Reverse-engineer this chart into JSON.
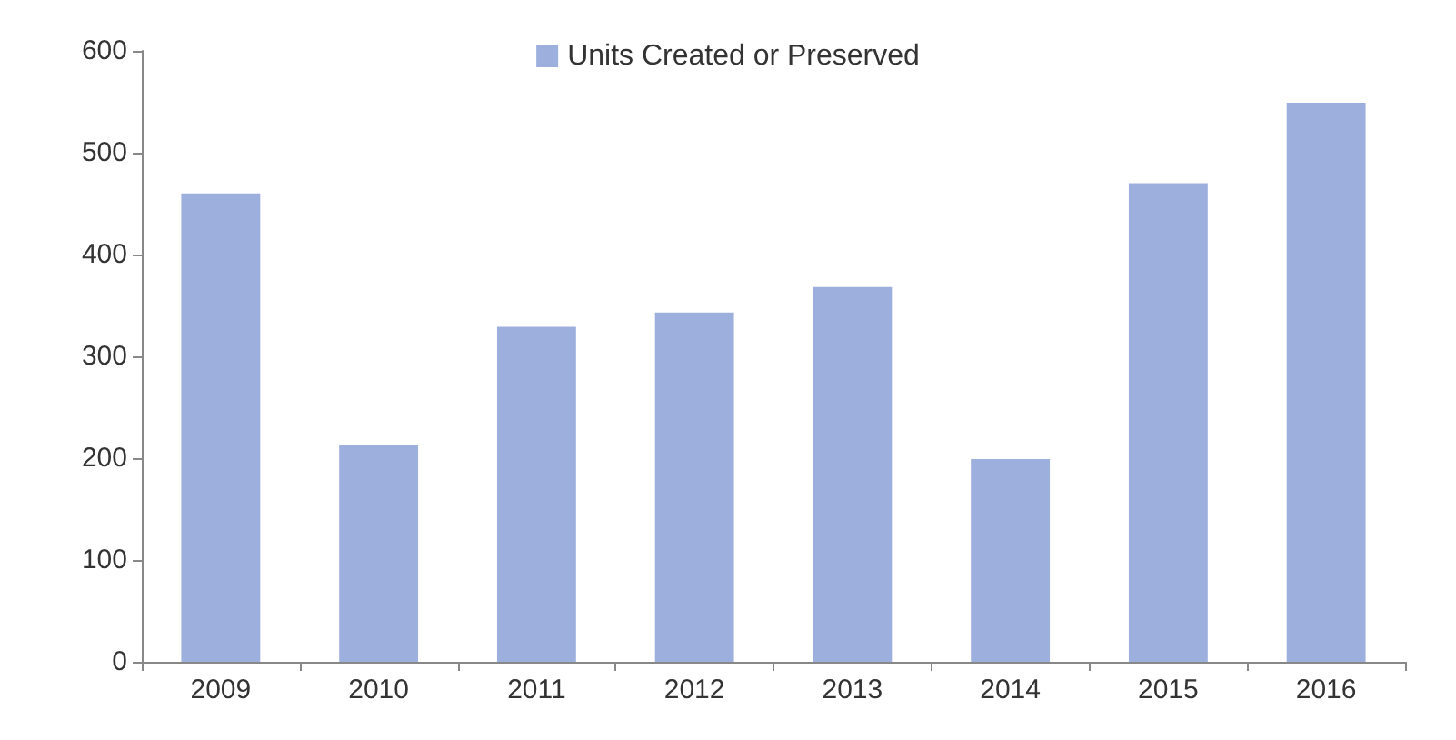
{
  "chart_data": {
    "type": "bar",
    "categories": [
      "2009",
      "2010",
      "2011",
      "2012",
      "2013",
      "2014",
      "2015",
      "2016"
    ],
    "series": [
      {
        "name": "Units Created or Preserved",
        "color": "#9dafdc",
        "values": [
          460,
          213,
          329,
          343,
          368,
          199,
          470,
          549
        ]
      }
    ],
    "ylim": [
      0,
      600
    ],
    "yticks": [
      0,
      100,
      200,
      300,
      400,
      500,
      600
    ],
    "grid": false,
    "legend": "top"
  }
}
